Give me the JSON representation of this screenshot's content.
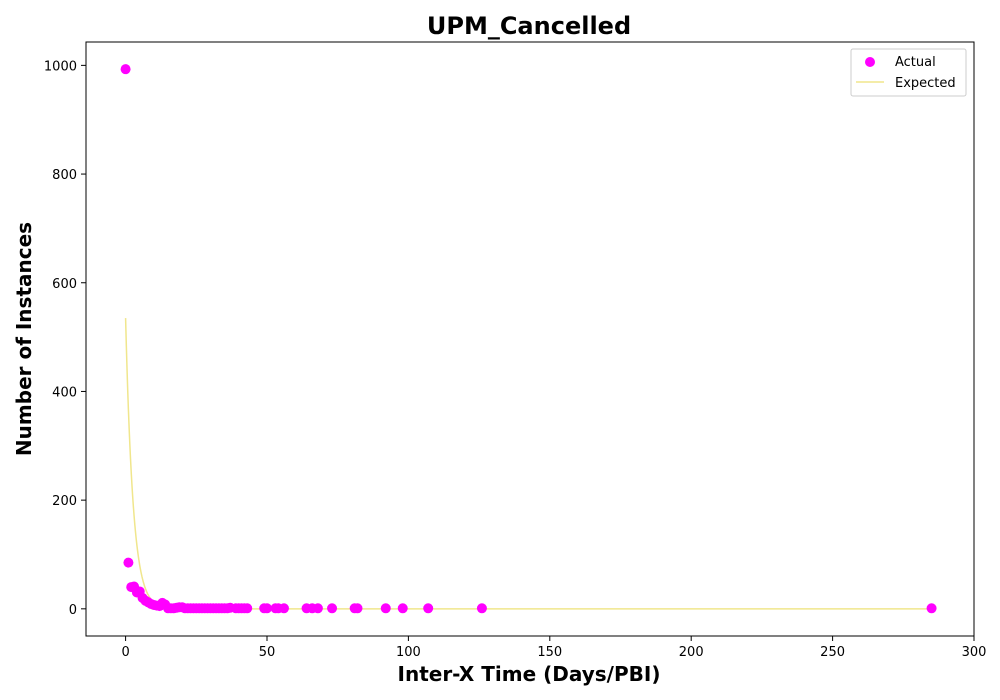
{
  "chart_data": {
    "type": "scatter",
    "title": "UPM_Cancelled",
    "xlabel": "Inter-X Time (Days/PBI)",
    "ylabel": "Number of Instances",
    "xlim": [
      -14,
      300
    ],
    "ylim": [
      -50,
      1043
    ],
    "xticks": [
      0,
      50,
      100,
      150,
      200,
      250,
      300
    ],
    "yticks": [
      0,
      200,
      400,
      600,
      800,
      1000
    ],
    "grid": false,
    "legend_position": "top-right",
    "colors": {
      "actual": "#ff00ff",
      "expected": "#f0e68c"
    },
    "series": [
      {
        "name": "Actual",
        "kind": "scatter",
        "points": [
          [
            0,
            993
          ],
          [
            1,
            85
          ],
          [
            2,
            40
          ],
          [
            3,
            41
          ],
          [
            4,
            30
          ],
          [
            5,
            32
          ],
          [
            6,
            20
          ],
          [
            7,
            15
          ],
          [
            8,
            12
          ],
          [
            9,
            9
          ],
          [
            10,
            7
          ],
          [
            11,
            6
          ],
          [
            12,
            5
          ],
          [
            13,
            11
          ],
          [
            14,
            8
          ],
          [
            15,
            1
          ],
          [
            16,
            1
          ],
          [
            17,
            1
          ],
          [
            18,
            2
          ],
          [
            19,
            3
          ],
          [
            20,
            3
          ],
          [
            21,
            1
          ],
          [
            22,
            1
          ],
          [
            23,
            1
          ],
          [
            24,
            1
          ],
          [
            25,
            1
          ],
          [
            26,
            1
          ],
          [
            27,
            1
          ],
          [
            28,
            1
          ],
          [
            29,
            1
          ],
          [
            30,
            1
          ],
          [
            31,
            1
          ],
          [
            32,
            1
          ],
          [
            33,
            1
          ],
          [
            34,
            1
          ],
          [
            35,
            1
          ],
          [
            36,
            1
          ],
          [
            37,
            2
          ],
          [
            39,
            1
          ],
          [
            40,
            1
          ],
          [
            41,
            1
          ],
          [
            42,
            1
          ],
          [
            43,
            1
          ],
          [
            49,
            1
          ],
          [
            50,
            1
          ],
          [
            53,
            1
          ],
          [
            54,
            1
          ],
          [
            56,
            1
          ],
          [
            64,
            1
          ],
          [
            66,
            1
          ],
          [
            68,
            1
          ],
          [
            73,
            1
          ],
          [
            81,
            1
          ],
          [
            82,
            1
          ],
          [
            92,
            1
          ],
          [
            98,
            1
          ],
          [
            107,
            1
          ],
          [
            126,
            1
          ],
          [
            285,
            1
          ]
        ]
      },
      {
        "name": "Expected",
        "kind": "line",
        "model": "exponential",
        "y0": 535,
        "decay_rate": 0.38,
        "x_range": [
          0,
          285
        ]
      }
    ]
  }
}
